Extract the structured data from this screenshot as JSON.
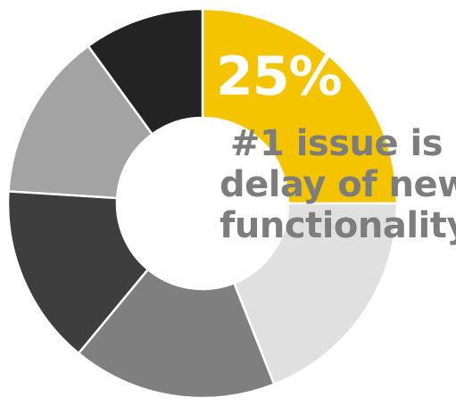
{
  "chart_data": {
    "type": "pie",
    "title": "",
    "highlight_value": "25%",
    "caption_lines": [
      "#1 issue is",
      "delay of new",
      "functionality"
    ],
    "slices": [
      {
        "value": 25,
        "color": "#F5C400"
      },
      {
        "value": 19,
        "color": "#E0E0E0"
      },
      {
        "value": 17,
        "color": "#7F7F7F"
      },
      {
        "value": 15,
        "color": "#3E3E3E"
      },
      {
        "value": 14,
        "color": "#A3A3A3"
      },
      {
        "value": 10,
        "color": "#232323"
      }
    ],
    "separator_color": "#FFFFFF"
  }
}
